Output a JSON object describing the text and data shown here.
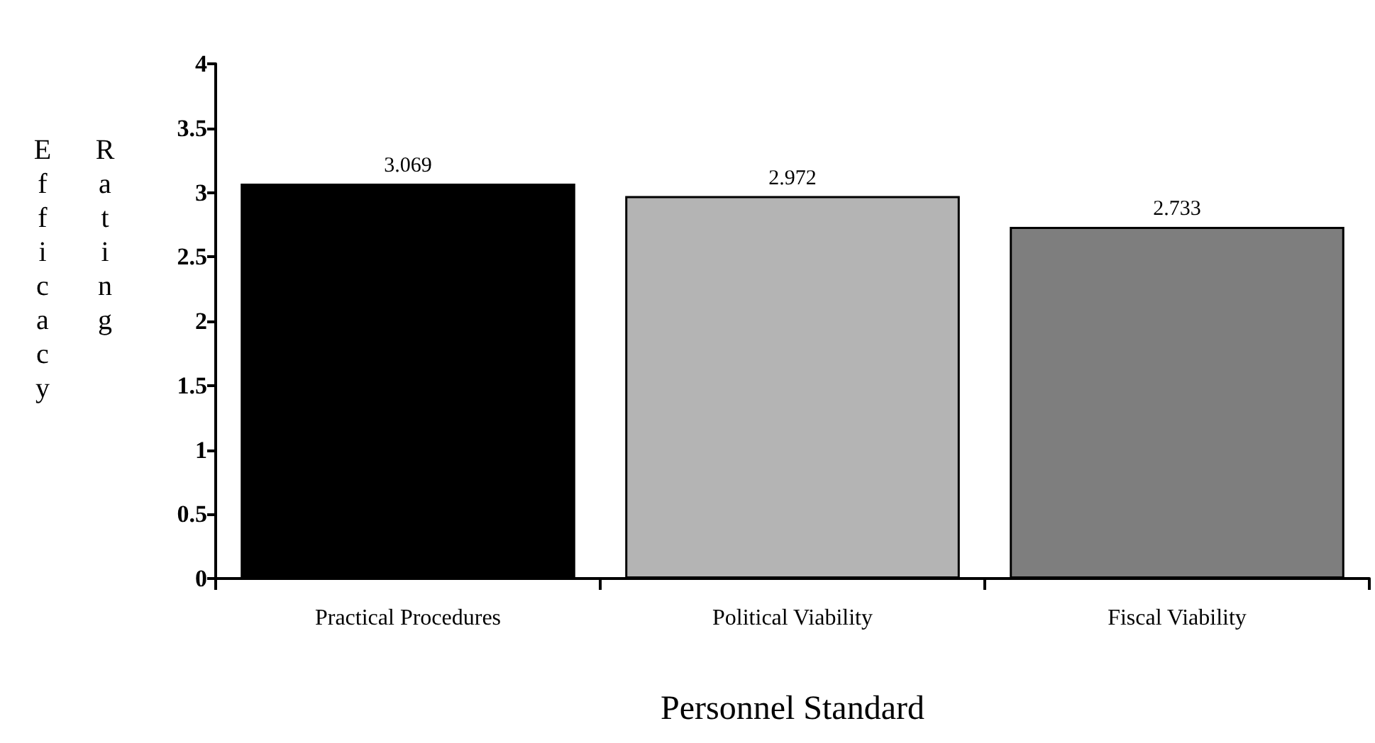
{
  "chart_data": {
    "type": "bar",
    "xlabel": "Personnel Standard",
    "ylabel": "Efficacy Rating",
    "categories": [
      "Practical Procedures",
      "Political Viability",
      "Fiscal Viability"
    ],
    "values": [
      3.069,
      2.972,
      2.733
    ],
    "colors": [
      "#000000",
      "#b4b4b4",
      "#7e7e7e"
    ],
    "ylim": [
      0,
      4
    ],
    "yticks": [
      0,
      0.5,
      1,
      1.5,
      2,
      2.5,
      3,
      3.5,
      4
    ],
    "data_labels": true,
    "grid": false
  }
}
